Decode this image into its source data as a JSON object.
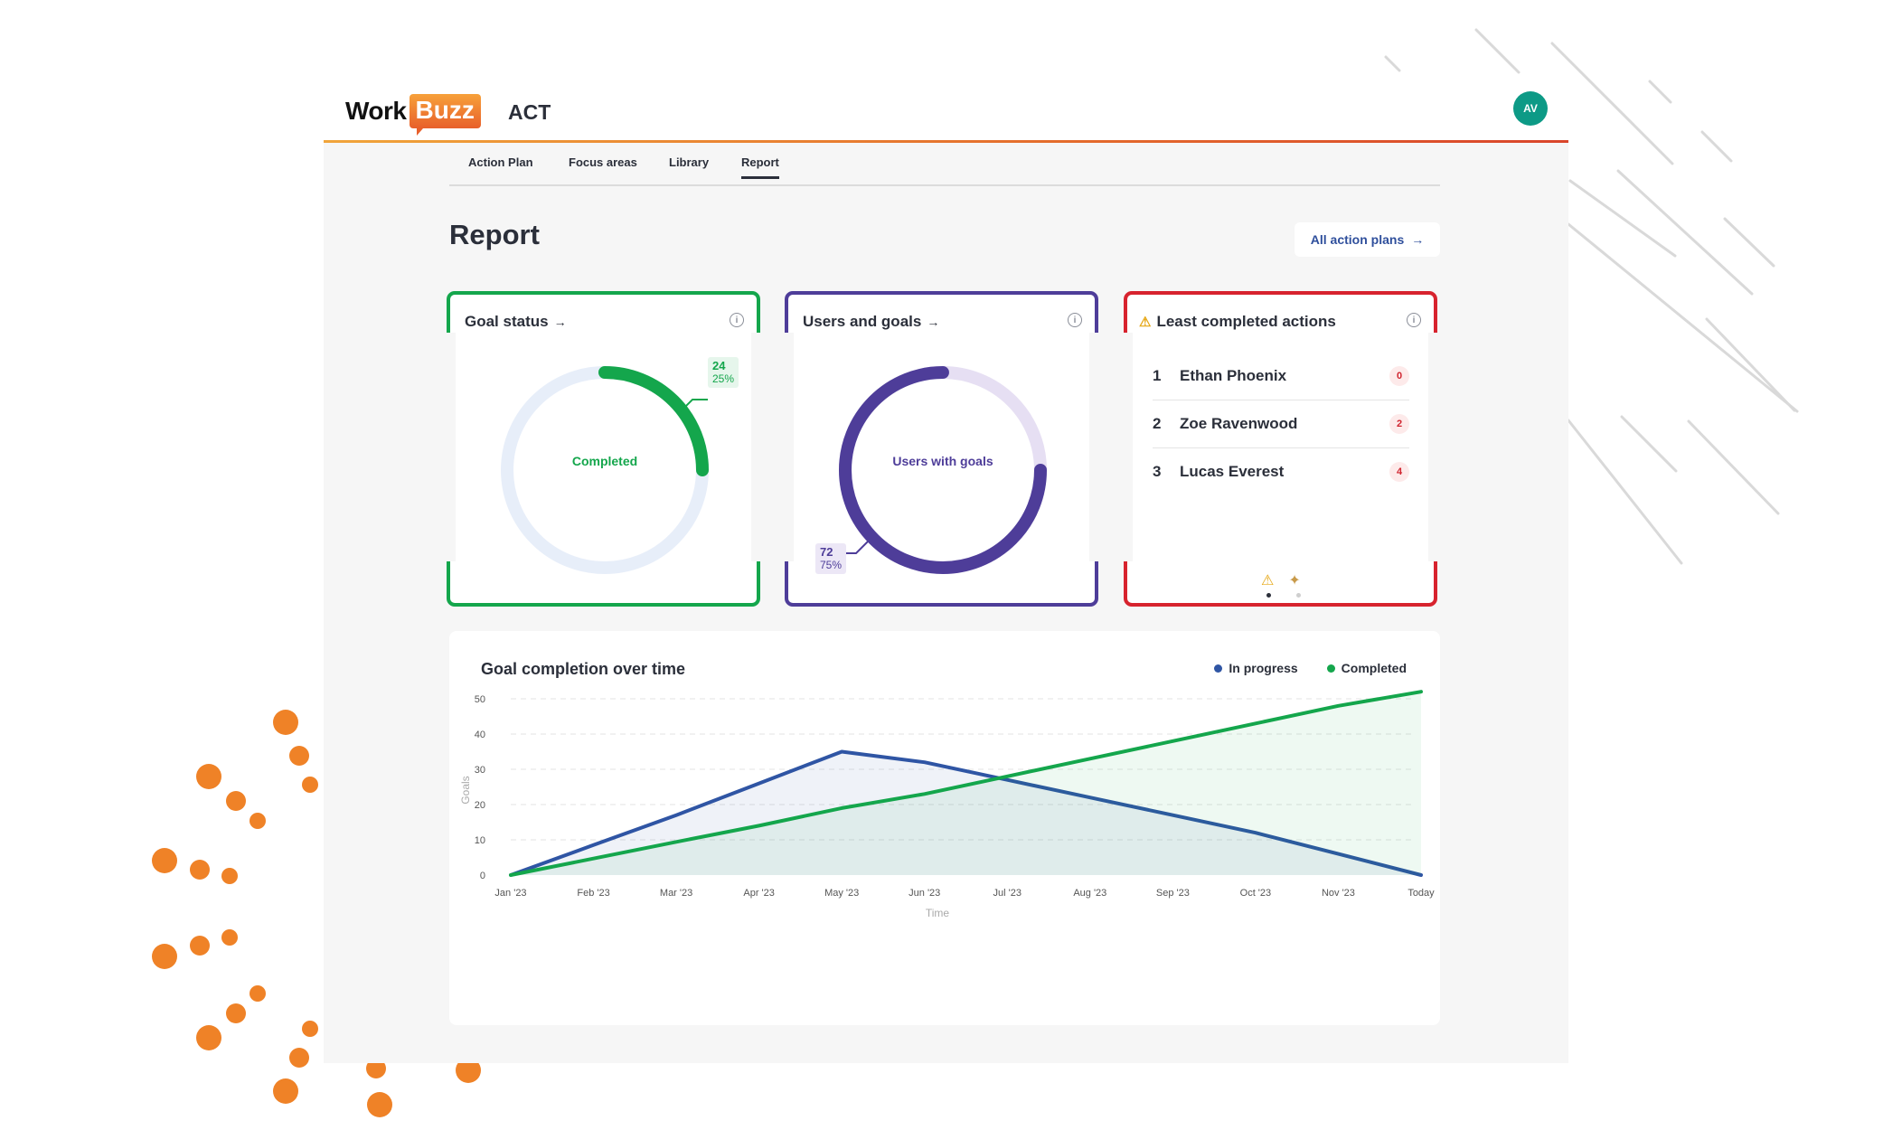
{
  "header": {
    "logo_work": "Work",
    "logo_buzz": "Buzz",
    "app_name": "ACT",
    "avatar_initials": "AV"
  },
  "tabs": [
    {
      "label": "Action Plan"
    },
    {
      "label": "Focus areas"
    },
    {
      "label": "Library"
    },
    {
      "label": "Report",
      "active": true
    }
  ],
  "page": {
    "title": "Report",
    "all_plans_label": "All action plans"
  },
  "goal_status": {
    "title": "Goal status",
    "center_label": "Completed",
    "count": "24",
    "percent": "25%",
    "fraction": 0.25,
    "color": "#14a64c"
  },
  "users_goals": {
    "title": "Users and goals",
    "center_label": "Users with goals",
    "count": "72",
    "percent": "75%",
    "fraction": 0.75,
    "color": "#4e3d99"
  },
  "least_completed": {
    "title": "Least completed actions",
    "color": "#d7232e",
    "rows": [
      {
        "rank": "1",
        "name": "Ethan Phoenix",
        "count": "0"
      },
      {
        "rank": "2",
        "name": "Zoe Ravenwood",
        "count": "2"
      },
      {
        "rank": "3",
        "name": "Lucas Everest",
        "count": "4"
      }
    ]
  },
  "chart_data": {
    "type": "area",
    "title": "Goal completion over time",
    "xlabel": "Time",
    "ylabel": "Goals",
    "ylim": [
      0,
      50
    ],
    "yticks": [
      0,
      10,
      20,
      30,
      40,
      50
    ],
    "categories": [
      "Jan '23",
      "Feb '23",
      "Mar '23",
      "Apr '23",
      "May '23",
      "Jun '23",
      "Jul '23",
      "Aug '23",
      "Sep '23",
      "Oct '23",
      "Nov '23",
      "Today"
    ],
    "legend_position": "top-right",
    "series": [
      {
        "name": "In progress",
        "color": "#2f55a4",
        "values": [
          0,
          8.5,
          17,
          26,
          35,
          32,
          27,
          22,
          17,
          12,
          6,
          0
        ]
      },
      {
        "name": "Completed",
        "color": "#14a64c",
        "values": [
          0,
          4.7,
          9.4,
          14,
          19,
          23,
          28,
          33,
          38,
          43,
          48,
          52
        ]
      }
    ]
  }
}
